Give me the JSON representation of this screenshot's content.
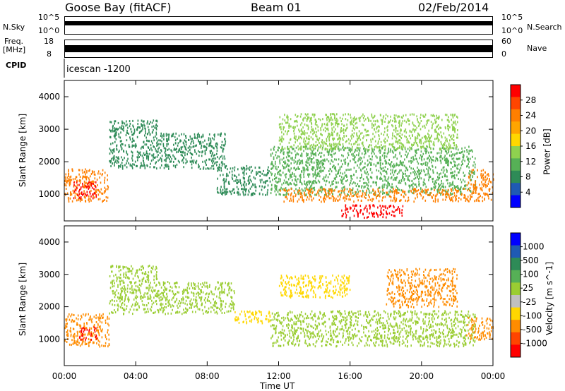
{
  "header": {
    "station": "Goose Bay (fitACF)",
    "beam": "Beam 01",
    "date": "02/Feb/2014"
  },
  "top_panels": {
    "nsky_label": "N.Sky",
    "nsky_ticks": [
      "10^5",
      "10^0"
    ],
    "nsearch_label": "N.Search",
    "nsearch_ticks": [
      "10^5",
      "10^0"
    ],
    "freq_label_1": "Freq.",
    "freq_label_2": "[MHz]",
    "freq_ticks": [
      "18",
      "8"
    ],
    "nave_label": "Nave",
    "nave_ticks": [
      "60",
      "0"
    ],
    "cpid_label": "CPID",
    "cpid_value": "icescan -1200"
  },
  "colors": {
    "power_scale": [
      "#0000ff",
      "#1f5ab4",
      "#2e8b57",
      "#56b056",
      "#8fd14f",
      "#ffd700",
      "#ffa500",
      "#ff7f00",
      "#ff4500",
      "#ff0000"
    ],
    "velocity_scale": [
      "#0000ff",
      "#1f5ab4",
      "#2e8b57",
      "#56b056",
      "#9acd32",
      "#c0c0c0",
      "#ffd700",
      "#ff8c00",
      "#ff4500",
      "#ff0000"
    ]
  },
  "chart_data": [
    {
      "type": "heatmap",
      "title": "",
      "xlabel": "Time UT",
      "ylabel": "Slant Range [km]",
      "x_ticks": [
        "00:00",
        "04:00",
        "08:00",
        "12:00",
        "16:00",
        "20:00",
        "00:00"
      ],
      "y_ticks": [
        1000,
        2000,
        3000,
        4000
      ],
      "ylim": [
        180,
        4500
      ],
      "colorbar": {
        "label": "Power [dB]",
        "ticks": [
          4,
          8,
          12,
          16,
          20,
          24,
          28
        ],
        "range": [
          0,
          30
        ]
      },
      "regions": [
        {
          "t0": 0.0,
          "t1": 2.5,
          "r0": 800,
          "r1": 1800,
          "value": 22
        },
        {
          "t0": 0.5,
          "t1": 1.8,
          "r0": 900,
          "r1": 1400,
          "value": 28
        },
        {
          "t0": 2.5,
          "t1": 5.2,
          "r0": 1800,
          "r1": 3300,
          "value": 6
        },
        {
          "t0": 5.2,
          "t1": 9.0,
          "r0": 1800,
          "r1": 2900,
          "value": 6
        },
        {
          "t0": 8.5,
          "t1": 11.5,
          "r0": 1000,
          "r1": 1900,
          "value": 8
        },
        {
          "t0": 11.5,
          "t1": 23.0,
          "r0": 1000,
          "r1": 2500,
          "value": 10
        },
        {
          "t0": 12.0,
          "t1": 22.5,
          "r0": 800,
          "r1": 1200,
          "value": 22
        },
        {
          "t0": 15.5,
          "t1": 19.0,
          "r0": 300,
          "r1": 700,
          "value": 28
        },
        {
          "t0": 12.0,
          "t1": 22.0,
          "r0": 2400,
          "r1": 3500,
          "value": 12
        },
        {
          "t0": 22.5,
          "t1": 24.0,
          "r0": 800,
          "r1": 1800,
          "value": 22
        }
      ]
    },
    {
      "type": "heatmap",
      "title": "",
      "xlabel": "Time UT",
      "ylabel": "Slant Range [km]",
      "x_ticks": [
        "00:00",
        "04:00",
        "08:00",
        "12:00",
        "16:00",
        "20:00",
        "00:00"
      ],
      "y_ticks": [
        1000,
        2000,
        3000,
        4000
      ],
      "ylim": [
        180,
        4500
      ],
      "colorbar": {
        "label": "Velocity [m s^-1]",
        "ticks": [
          1000,
          500,
          100,
          25,
          -25,
          -100,
          -500,
          -1000
        ],
        "range": [
          -1200,
          1200
        ]
      },
      "regions": [
        {
          "t0": 0.0,
          "t1": 2.5,
          "r0": 800,
          "r1": 1800,
          "value": -500
        },
        {
          "t0": 0.8,
          "t1": 1.8,
          "r0": 1000,
          "r1": 1400,
          "value": -1000
        },
        {
          "t0": 2.5,
          "t1": 5.2,
          "r0": 1800,
          "r1": 3300,
          "value": 0
        },
        {
          "t0": 5.2,
          "t1": 9.5,
          "r0": 1800,
          "r1": 2800,
          "value": 0
        },
        {
          "t0": 9.5,
          "t1": 11.5,
          "r0": 1500,
          "r1": 1900,
          "value": -400
        },
        {
          "t0": 11.5,
          "t1": 23.0,
          "r0": 800,
          "r1": 1900,
          "value": 0
        },
        {
          "t0": 12.0,
          "t1": 16.0,
          "r0": 2300,
          "r1": 3000,
          "value": -300
        },
        {
          "t0": 18.0,
          "t1": 22.0,
          "r0": 2000,
          "r1": 3200,
          "value": -500
        },
        {
          "t0": 22.5,
          "t1": 24.0,
          "r0": 1000,
          "r1": 1700,
          "value": -500
        }
      ]
    }
  ]
}
